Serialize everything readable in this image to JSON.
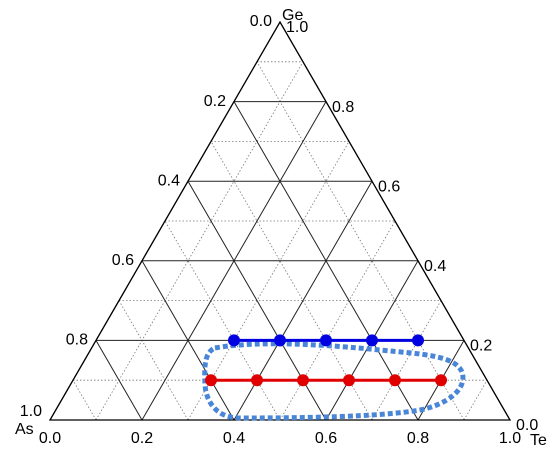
{
  "chart_data": {
    "type": "ternary",
    "a_label": "As",
    "b_label": "Te",
    "c_label": "Ge",
    "alim": [
      0,
      1
    ],
    "blim": [
      0,
      1
    ],
    "clim": [
      0,
      1
    ],
    "a_ticks": [
      {
        "value": 0,
        "label": "0.0"
      },
      0.2,
      0.4,
      0.6,
      0.8,
      {
        "value": 1,
        "label": "1.0"
      }
    ],
    "b_ticks": [
      {
        "value": 0,
        "label": "0.0"
      },
      0.2,
      0.4,
      0.6,
      0.8,
      {
        "value": 1,
        "label": "1.0"
      }
    ],
    "c_ticks": [
      {
        "value": 0,
        "label": "0.0"
      },
      0.2,
      0.4,
      0.6,
      0.8,
      {
        "value": 1,
        "label": "1.0"
      }
    ],
    "grid": true,
    "series": [
      {
        "color": "#0000e0",
        "te": [
          0.3,
          0.4,
          0.5,
          0.6,
          0.7
        ],
        "ge": [
          0.2,
          0.2,
          0.2,
          0.2,
          0.2
        ]
      },
      {
        "color": "#e00000",
        "te": [
          0.3,
          0.4,
          0.5,
          0.6,
          0.7,
          0.8
        ],
        "ge": [
          0.1,
          0.1,
          0.1,
          0.1,
          0.1,
          0.1
        ]
      }
    ]
  }
}
